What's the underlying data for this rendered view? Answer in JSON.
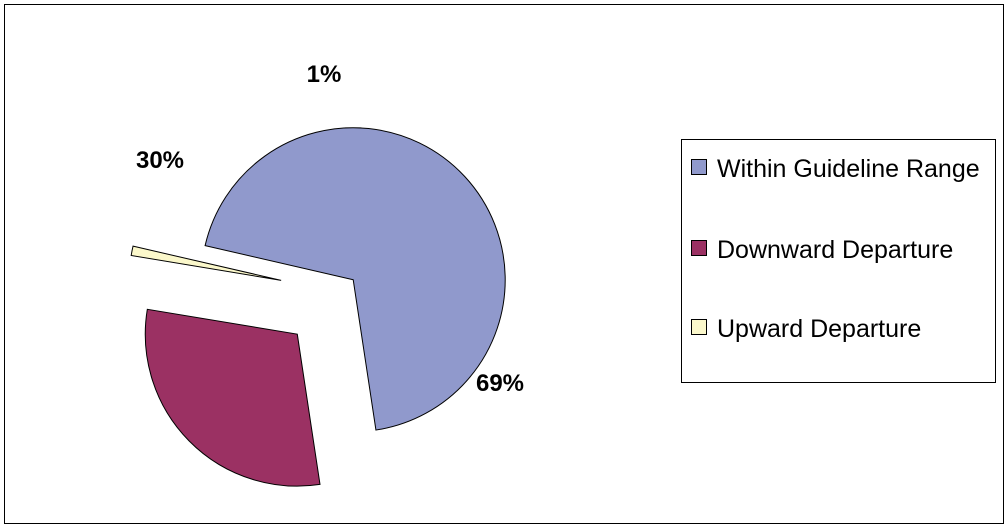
{
  "chart_data": {
    "type": "pie",
    "exploded": true,
    "title": "",
    "slices": [
      {
        "name": "Within Guideline Range",
        "value": 69,
        "label": "69%",
        "color": "#9099cc"
      },
      {
        "name": "Downward Departure",
        "value": 30,
        "label": "30%",
        "color": "#9b3163"
      },
      {
        "name": "Upward Departure",
        "value": 1,
        "label": "1%",
        "color": "#fbf8cb"
      }
    ],
    "legend": {
      "placement": "right",
      "entries": [
        "Within Guideline Range",
        "Downward Departure",
        "Upward Departure"
      ]
    }
  }
}
